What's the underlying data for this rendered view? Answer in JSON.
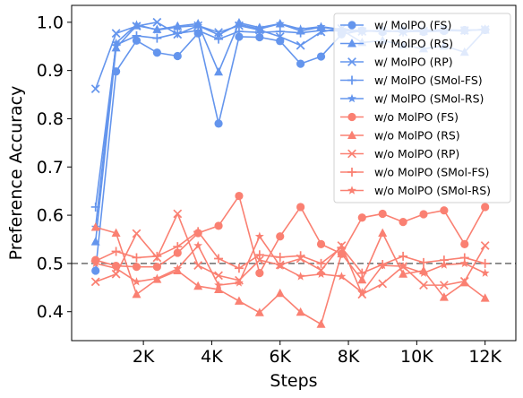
{
  "chart_data": {
    "type": "line",
    "xlabel": "Steps",
    "ylabel": "Preference Accuracy",
    "xlim": [
      -100,
      12900
    ],
    "ylim": [
      0.34,
      1.035
    ],
    "x_ticks": [
      2000,
      4000,
      6000,
      8000,
      10000,
      12000
    ],
    "x_tick_labels": [
      "2K",
      "4K",
      "6K",
      "8K",
      "10K",
      "12K"
    ],
    "y_ticks": [
      0.4,
      0.5,
      0.6,
      0.7,
      0.8,
      0.9,
      1.0
    ],
    "y_tick_labels": [
      "0.4",
      "0.5",
      "0.6",
      "0.7",
      "0.8",
      "0.9",
      "1.0"
    ],
    "reference_line": {
      "y": 0.5,
      "style": "dashed",
      "color": "#808080"
    },
    "legend_placement": "top-right",
    "x": [
      600,
      1200,
      1800,
      2400,
      3000,
      3600,
      4200,
      4800,
      5400,
      6000,
      6600,
      7200,
      7800,
      8400,
      9000,
      9600,
      10200,
      10800,
      11400,
      12000
    ],
    "series": [
      {
        "name": "w/ MolPO (FS)",
        "color": "#6495ED",
        "marker": "circle",
        "values": [
          0.485,
          0.898,
          0.962,
          0.937,
          0.93,
          0.977,
          0.79,
          0.97,
          0.969,
          0.961,
          0.914,
          0.929,
          0.975,
          0.983,
          0.98,
          0.983,
          0.98,
          0.982,
          0.984,
          0.984
        ]
      },
      {
        "name": "w/ MolPO (RS)",
        "color": "#6495ED",
        "marker": "triangle",
        "values": [
          0.545,
          0.947,
          0.993,
          0.985,
          0.992,
          0.997,
          0.897,
          0.999,
          0.989,
          0.997,
          0.982,
          0.99,
          0.984,
          0.958,
          0.962,
          0.953,
          0.945,
          0.951,
          0.938,
          0.984
        ]
      },
      {
        "name": "w/ MolPO (RP)",
        "color": "#6495ED",
        "marker": "x",
        "values": [
          0.862,
          0.977,
          0.992,
          1.0,
          0.975,
          0.993,
          0.979,
          0.993,
          0.984,
          0.97,
          0.952,
          0.98,
          0.987,
          0.981,
          0.983,
          0.98,
          0.982,
          0.985,
          0.983,
          0.985
        ]
      },
      {
        "name": "w/ MolPO (SMol-FS)",
        "color": "#6495ED",
        "marker": "plus",
        "values": [
          0.617,
          0.953,
          0.972,
          0.967,
          0.977,
          0.983,
          0.965,
          0.981,
          0.979,
          0.981,
          0.978,
          0.983,
          0.982,
          0.981,
          0.983,
          0.98,
          0.982,
          0.984,
          0.983,
          0.985
        ]
      },
      {
        "name": "w/ MolPO (SMol-RS)",
        "color": "#6495ED",
        "marker": "star",
        "values": [
          0.575,
          0.957,
          0.995,
          0.984,
          0.99,
          0.993,
          0.974,
          0.996,
          0.986,
          0.997,
          0.986,
          0.991,
          0.985,
          0.983,
          0.981,
          0.982,
          0.984,
          0.983,
          0.982,
          0.986
        ]
      },
      {
        "name": "w/o MolPO (FS)",
        "color": "#FA8072",
        "marker": "circle",
        "values": [
          0.507,
          0.495,
          0.493,
          0.493,
          0.522,
          0.563,
          0.578,
          0.64,
          0.48,
          0.556,
          0.617,
          0.54,
          0.52,
          0.595,
          0.603,
          0.586,
          0.602,
          0.61,
          0.54,
          0.617
        ]
      },
      {
        "name": "w/o MolPO (RS)",
        "color": "#FA8072",
        "marker": "triangle",
        "values": [
          0.575,
          0.563,
          0.436,
          0.467,
          0.485,
          0.453,
          0.446,
          0.422,
          0.398,
          0.438,
          0.399,
          0.374,
          0.52,
          0.466,
          0.563,
          0.478,
          0.485,
          0.43,
          0.46,
          0.428
        ]
      },
      {
        "name": "w/o MolPO (RP)",
        "color": "#FA8072",
        "marker": "x",
        "values": [
          0.462,
          0.478,
          0.562,
          0.512,
          0.603,
          0.496,
          0.475,
          0.465,
          0.507,
          0.497,
          0.51,
          0.486,
          0.537,
          0.436,
          0.458,
          0.494,
          0.455,
          0.455,
          0.463,
          0.537
        ]
      },
      {
        "name": "w/o MolPO (SMol-FS)",
        "color": "#FA8072",
        "marker": "plus",
        "values": [
          0.505,
          0.525,
          0.512,
          0.515,
          0.535,
          0.566,
          0.51,
          0.49,
          0.518,
          0.513,
          0.516,
          0.5,
          0.533,
          0.48,
          0.498,
          0.515,
          0.502,
          0.507,
          0.512,
          0.5
        ]
      },
      {
        "name": "w/o MolPO (SMol-RS)",
        "color": "#FA8072",
        "marker": "star",
        "values": [
          0.5,
          0.49,
          0.462,
          0.469,
          0.489,
          0.537,
          0.455,
          0.46,
          0.556,
          0.495,
          0.473,
          0.478,
          0.473,
          0.44,
          0.496,
          0.494,
          0.48,
          0.497,
          0.5,
          0.48
        ]
      }
    ]
  }
}
